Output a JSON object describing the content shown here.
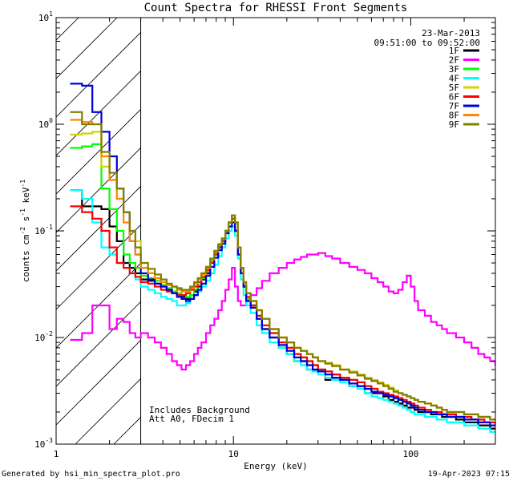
{
  "chart_data": {
    "type": "line",
    "title": "Count Spectra for RHESSI Front Segments",
    "xlabel": "Energy (keV)",
    "ylabel_parts": [
      "counts cm",
      "-2",
      " s",
      "-1",
      " keV",
      "-1"
    ],
    "xscale": "log",
    "yscale": "log",
    "xlim": [
      1,
      300
    ],
    "ylim": [
      0.001,
      10
    ],
    "x_ticks": [
      {
        "value": 1,
        "label": "1"
      },
      {
        "value": 10,
        "label": "10"
      },
      {
        "value": 100,
        "label": "100"
      }
    ],
    "y_ticks": [
      {
        "value": 10,
        "base": "10",
        "exp": "1"
      },
      {
        "value": 1,
        "base": "10",
        "exp": "0"
      },
      {
        "value": 0.1,
        "base": "10",
        "exp": "-1"
      },
      {
        "value": 0.01,
        "base": "10",
        "exp": "-2"
      },
      {
        "value": 0.001,
        "base": "10",
        "exp": "-3"
      }
    ],
    "date": "23-Mar-2013",
    "time_range": "09:51:00 to 09:52:00",
    "legend_position": "top-right",
    "hatched_region_max_kev": 3,
    "annotations": [
      "Includes Background",
      "Att A0, FDecim 1"
    ],
    "energy_bins": [
      1.2,
      1.4,
      1.6,
      1.8,
      2.0,
      2.2,
      2.4,
      2.6,
      2.8,
      3.0,
      3.3,
      3.6,
      3.9,
      4.2,
      4.5,
      4.8,
      5.1,
      5.4,
      5.7,
      6.0,
      6.3,
      6.6,
      7.0,
      7.4,
      7.8,
      8.2,
      8.6,
      9.0,
      9.4,
      9.8,
      10.2,
      10.6,
      11.0,
      11.4,
      11.8,
      12.5,
      13.5,
      14.5,
      16,
      18,
      20,
      22,
      24,
      26,
      28,
      30,
      33,
      36,
      40,
      45,
      50,
      55,
      60,
      65,
      70,
      75,
      80,
      85,
      90,
      95,
      100,
      105,
      110,
      120,
      130,
      140,
      150,
      160,
      180,
      200,
      220,
      240,
      260,
      280,
      300
    ],
    "series": [
      {
        "name": "1F",
        "color": "#000000",
        "values": [
          0.24,
          0.17,
          0.17,
          0.16,
          0.11,
          0.08,
          0.05,
          0.045,
          0.04,
          0.035,
          0.034,
          0.032,
          0.03,
          0.028,
          0.027,
          0.025,
          0.024,
          0.023,
          0.025,
          0.027,
          0.03,
          0.035,
          0.04,
          0.05,
          0.06,
          0.07,
          0.08,
          0.1,
          0.12,
          0.12,
          0.1,
          0.06,
          0.04,
          0.03,
          0.022,
          0.02,
          0.015,
          0.012,
          0.01,
          0.008,
          0.007,
          0.006,
          0.006,
          0.005,
          0.005,
          0.005,
          0.004,
          0.004,
          0.004,
          0.0035,
          0.0035,
          0.003,
          0.003,
          0.003,
          0.0028,
          0.0026,
          0.0025,
          0.0024,
          0.0023,
          0.0022,
          0.0022,
          0.0021,
          0.002,
          0.002,
          0.0019,
          0.0019,
          0.0018,
          0.0018,
          0.0017,
          0.0016,
          0.0016,
          0.0015,
          0.0015,
          0.0014,
          0.0014
        ]
      },
      {
        "name": "2F",
        "color": "#ff00ff",
        "values": [
          0.0095,
          0.011,
          0.02,
          0.02,
          0.012,
          0.015,
          0.014,
          0.011,
          0.01,
          0.011,
          0.01,
          0.009,
          0.008,
          0.007,
          0.006,
          0.0055,
          0.005,
          0.0055,
          0.006,
          0.007,
          0.008,
          0.009,
          0.011,
          0.013,
          0.015,
          0.018,
          0.022,
          0.028,
          0.035,
          0.045,
          0.03,
          0.022,
          0.02,
          0.02,
          0.022,
          0.025,
          0.029,
          0.034,
          0.04,
          0.045,
          0.05,
          0.054,
          0.057,
          0.06,
          0.06,
          0.062,
          0.058,
          0.055,
          0.05,
          0.046,
          0.043,
          0.04,
          0.036,
          0.033,
          0.03,
          0.027,
          0.026,
          0.028,
          0.033,
          0.038,
          0.03,
          0.022,
          0.018,
          0.016,
          0.014,
          0.013,
          0.012,
          0.011,
          0.01,
          0.009,
          0.008,
          0.007,
          0.0065,
          0.006,
          0.0055
        ]
      },
      {
        "name": "3F",
        "color": "#00ff00",
        "values": [
          0.6,
          0.62,
          0.65,
          0.25,
          0.16,
          0.1,
          0.06,
          0.05,
          0.045,
          0.038,
          0.036,
          0.034,
          0.031,
          0.029,
          0.027,
          0.026,
          0.025,
          0.024,
          0.025,
          0.028,
          0.031,
          0.036,
          0.042,
          0.052,
          0.062,
          0.072,
          0.082,
          0.1,
          0.12,
          0.13,
          0.1,
          0.06,
          0.04,
          0.03,
          0.023,
          0.02,
          0.016,
          0.013,
          0.011,
          0.009,
          0.008,
          0.007,
          0.0065,
          0.006,
          0.0055,
          0.005,
          0.0048,
          0.0045,
          0.0042,
          0.004,
          0.0038,
          0.0035,
          0.0033,
          0.003,
          0.0029,
          0.0028,
          0.0027,
          0.0026,
          0.0025,
          0.0024,
          0.0023,
          0.0022,
          0.0021,
          0.002,
          0.002,
          0.0019,
          0.0019,
          0.0018,
          0.0018,
          0.0017,
          0.0017,
          0.0016,
          0.0016,
          0.0015,
          0.0015
        ]
      },
      {
        "name": "4F",
        "color": "#00ffff",
        "values": [
          0.24,
          0.2,
          0.12,
          0.07,
          0.06,
          0.05,
          0.045,
          0.04,
          0.035,
          0.03,
          0.028,
          0.026,
          0.024,
          0.023,
          0.022,
          0.02,
          0.02,
          0.021,
          0.023,
          0.025,
          0.027,
          0.03,
          0.034,
          0.04,
          0.048,
          0.058,
          0.07,
          0.085,
          0.1,
          0.11,
          0.09,
          0.055,
          0.035,
          0.025,
          0.02,
          0.017,
          0.013,
          0.011,
          0.009,
          0.008,
          0.007,
          0.006,
          0.0055,
          0.005,
          0.0048,
          0.0045,
          0.0042,
          0.004,
          0.0038,
          0.0035,
          0.0033,
          0.003,
          0.0028,
          0.0027,
          0.0026,
          0.0025,
          0.0024,
          0.0023,
          0.0022,
          0.0021,
          0.002,
          0.0019,
          0.0019,
          0.0018,
          0.0018,
          0.0017,
          0.0017,
          0.0016,
          0.0016,
          0.0015,
          0.0015,
          0.0014,
          0.0014,
          0.0013,
          0.0013
        ]
      },
      {
        "name": "5F",
        "color": "#d4d400",
        "values": [
          0.8,
          0.82,
          0.85,
          0.4,
          0.3,
          0.2,
          0.15,
          0.1,
          0.08,
          0.045,
          0.04,
          0.036,
          0.033,
          0.031,
          0.03,
          0.029,
          0.028,
          0.028,
          0.03,
          0.033,
          0.036,
          0.04,
          0.046,
          0.055,
          0.065,
          0.075,
          0.085,
          0.1,
          0.12,
          0.14,
          0.12,
          0.07,
          0.045,
          0.033,
          0.026,
          0.022,
          0.018,
          0.015,
          0.012,
          0.01,
          0.009,
          0.008,
          0.0075,
          0.007,
          0.0065,
          0.006,
          0.0058,
          0.0055,
          0.005,
          0.0048,
          0.0045,
          0.0042,
          0.004,
          0.0038,
          0.0036,
          0.0034,
          0.0032,
          0.003,
          0.0029,
          0.0028,
          0.0027,
          0.0026,
          0.0025,
          0.0024,
          0.0023,
          0.0022,
          0.0021,
          0.002,
          0.002,
          0.0019,
          0.0019,
          0.0018,
          0.0018,
          0.0017,
          0.0017
        ]
      },
      {
        "name": "6F",
        "color": "#ff0000",
        "values": [
          0.17,
          0.15,
          0.13,
          0.1,
          0.07,
          0.05,
          0.045,
          0.04,
          0.037,
          0.033,
          0.032,
          0.03,
          0.028,
          0.027,
          0.026,
          0.025,
          0.025,
          0.026,
          0.028,
          0.03,
          0.033,
          0.037,
          0.043,
          0.05,
          0.06,
          0.07,
          0.08,
          0.1,
          0.12,
          0.13,
          0.1,
          0.06,
          0.04,
          0.03,
          0.024,
          0.02,
          0.016,
          0.013,
          0.011,
          0.009,
          0.008,
          0.007,
          0.0065,
          0.006,
          0.0055,
          0.005,
          0.0048,
          0.0045,
          0.0042,
          0.004,
          0.0038,
          0.0035,
          0.0033,
          0.0031,
          0.003,
          0.0029,
          0.0028,
          0.0027,
          0.0026,
          0.0025,
          0.0024,
          0.0023,
          0.0022,
          0.0021,
          0.002,
          0.002,
          0.0019,
          0.0019,
          0.0018,
          0.0018,
          0.0017,
          0.0017,
          0.0016,
          0.0016,
          0.0015
        ]
      },
      {
        "name": "7F",
        "color": "#0000dd",
        "values": [
          2.4,
          2.3,
          1.3,
          0.85,
          0.5,
          0.25,
          0.15,
          0.08,
          0.06,
          0.04,
          0.035,
          0.032,
          0.03,
          0.028,
          0.026,
          0.024,
          0.023,
          0.022,
          0.023,
          0.025,
          0.028,
          0.032,
          0.038,
          0.046,
          0.056,
          0.066,
          0.076,
          0.095,
          0.11,
          0.12,
          0.1,
          0.06,
          0.04,
          0.03,
          0.022,
          0.019,
          0.015,
          0.012,
          0.01,
          0.0085,
          0.0075,
          0.0065,
          0.006,
          0.0055,
          0.005,
          0.0048,
          0.0045,
          0.0042,
          0.004,
          0.0037,
          0.0035,
          0.0033,
          0.0031,
          0.003,
          0.0029,
          0.0028,
          0.0027,
          0.0026,
          0.0025,
          0.0024,
          0.0023,
          0.0022,
          0.0021,
          0.002,
          0.002,
          0.0019,
          0.0019,
          0.0018,
          0.0018,
          0.0017,
          0.0017,
          0.0016,
          0.0016,
          0.0015,
          0.0015
        ]
      },
      {
        "name": "8F",
        "color": "#ff8800",
        "values": [
          1.1,
          1.05,
          1.0,
          0.5,
          0.3,
          0.2,
          0.12,
          0.08,
          0.06,
          0.045,
          0.04,
          0.036,
          0.033,
          0.031,
          0.03,
          0.028,
          0.027,
          0.027,
          0.029,
          0.032,
          0.035,
          0.039,
          0.045,
          0.054,
          0.064,
          0.074,
          0.084,
          0.1,
          0.12,
          0.14,
          0.12,
          0.07,
          0.045,
          0.033,
          0.026,
          0.022,
          0.018,
          0.015,
          0.012,
          0.01,
          0.009,
          0.008,
          0.0075,
          0.007,
          0.0065,
          0.006,
          0.0057,
          0.0054,
          0.005,
          0.0047,
          0.0044,
          0.0041,
          0.0039,
          0.0037,
          0.0035,
          0.0033,
          0.0031,
          0.003,
          0.0029,
          0.0028,
          0.0027,
          0.0026,
          0.0025,
          0.0024,
          0.0023,
          0.0022,
          0.0021,
          0.002,
          0.002,
          0.0019,
          0.0019,
          0.0018,
          0.0018,
          0.0017,
          0.0017
        ]
      },
      {
        "name": "9F",
        "color": "#808000",
        "values": [
          1.3,
          1.0,
          1.0,
          0.55,
          0.35,
          0.25,
          0.15,
          0.1,
          0.07,
          0.05,
          0.044,
          0.039,
          0.035,
          0.032,
          0.03,
          0.029,
          0.028,
          0.028,
          0.03,
          0.033,
          0.036,
          0.04,
          0.046,
          0.055,
          0.065,
          0.075,
          0.085,
          0.1,
          0.12,
          0.14,
          0.12,
          0.07,
          0.045,
          0.033,
          0.026,
          0.022,
          0.018,
          0.015,
          0.012,
          0.01,
          0.009,
          0.008,
          0.0075,
          0.007,
          0.0065,
          0.006,
          0.0057,
          0.0054,
          0.005,
          0.0047,
          0.0044,
          0.0041,
          0.0039,
          0.0037,
          0.0035,
          0.0033,
          0.0031,
          0.003,
          0.0029,
          0.0028,
          0.0027,
          0.0026,
          0.0025,
          0.0024,
          0.0023,
          0.0022,
          0.0021,
          0.002,
          0.002,
          0.0019,
          0.0019,
          0.0018,
          0.0018,
          0.0017,
          0.0017
        ]
      }
    ]
  },
  "footer": {
    "left": "Generated by hsi_min_spectra_plot.pro",
    "right": "19-Apr-2023 07:15"
  }
}
